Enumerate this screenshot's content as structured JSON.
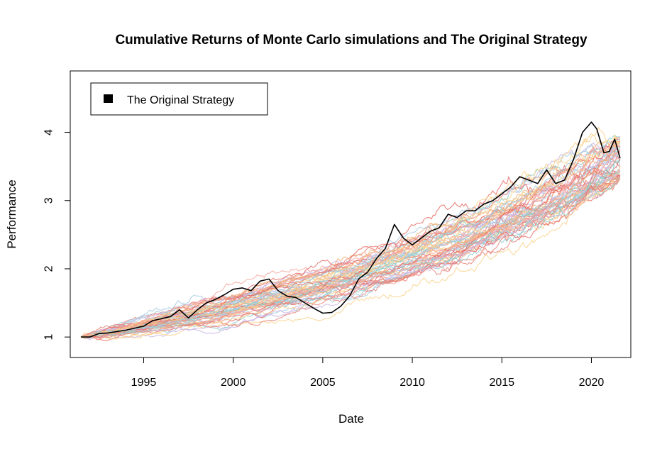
{
  "chart_data": {
    "type": "line",
    "title": "Cumulative Returns of Monte Carlo simulations and The Original Strategy",
    "xlabel": "Date",
    "ylabel": "Performance",
    "xlim": [
      1990.9,
      2022.2
    ],
    "ylim": [
      0.7,
      4.9
    ],
    "x_ticks": [
      1995,
      2000,
      2005,
      2010,
      2015,
      2020
    ],
    "x_tick_labels": [
      "1995",
      "2000",
      "2005",
      "2010",
      "2015",
      "2020"
    ],
    "y_ticks": [
      1,
      2,
      3,
      4
    ],
    "y_tick_labels": [
      "1",
      "2",
      "3",
      "4"
    ],
    "grid": false,
    "legend": {
      "position": "top-left",
      "entries": [
        "The Original Strategy"
      ]
    },
    "original_strategy": {
      "name": "The Original Strategy",
      "color": "#000000",
      "x": [
        1991.5,
        1992.0,
        1992.5,
        1993.0,
        1993.5,
        1994.0,
        1994.5,
        1995.0,
        1995.5,
        1996.0,
        1996.5,
        1997.0,
        1997.5,
        1998.0,
        1998.5,
        1999.0,
        1999.5,
        2000.0,
        2000.5,
        2001.0,
        2001.5,
        2002.0,
        2002.5,
        2003.0,
        2003.5,
        2004.0,
        2004.5,
        2005.0,
        2005.5,
        2006.0,
        2006.5,
        2007.0,
        2007.5,
        2008.0,
        2008.5,
        2009.0,
        2009.5,
        2010.0,
        2010.5,
        2011.0,
        2011.5,
        2012.0,
        2012.5,
        2013.0,
        2013.5,
        2014.0,
        2014.5,
        2015.0,
        2015.5,
        2016.0,
        2016.5,
        2017.0,
        2017.5,
        2018.0,
        2018.5,
        2019.0,
        2019.5,
        2020.0,
        2020.3,
        2020.7,
        2021.0,
        2021.3,
        2021.6
      ],
      "y": [
        1.0,
        1.0,
        1.05,
        1.06,
        1.08,
        1.1,
        1.13,
        1.16,
        1.24,
        1.27,
        1.3,
        1.4,
        1.28,
        1.4,
        1.5,
        1.55,
        1.62,
        1.7,
        1.72,
        1.68,
        1.82,
        1.85,
        1.68,
        1.6,
        1.58,
        1.5,
        1.42,
        1.35,
        1.36,
        1.45,
        1.6,
        1.85,
        1.95,
        2.15,
        2.3,
        2.65,
        2.45,
        2.35,
        2.45,
        2.55,
        2.6,
        2.8,
        2.75,
        2.85,
        2.85,
        2.95,
        3.0,
        3.1,
        3.2,
        3.35,
        3.3,
        3.25,
        3.45,
        3.25,
        3.3,
        3.6,
        4.0,
        4.15,
        4.05,
        3.7,
        3.72,
        3.9,
        3.62
      ]
    },
    "simulations": {
      "count": 60,
      "x_start": 1991.5,
      "x_end": 2021.6,
      "start_value": 1.0,
      "end_range": [
        3.3,
        3.95
      ],
      "palette": [
        "#e8877e",
        "#f2b37f",
        "#f9d38e",
        "#a8cde3",
        "#cdb6e3",
        "#8fcfd0",
        "#f6a9a0",
        "#e77067"
      ]
    }
  }
}
